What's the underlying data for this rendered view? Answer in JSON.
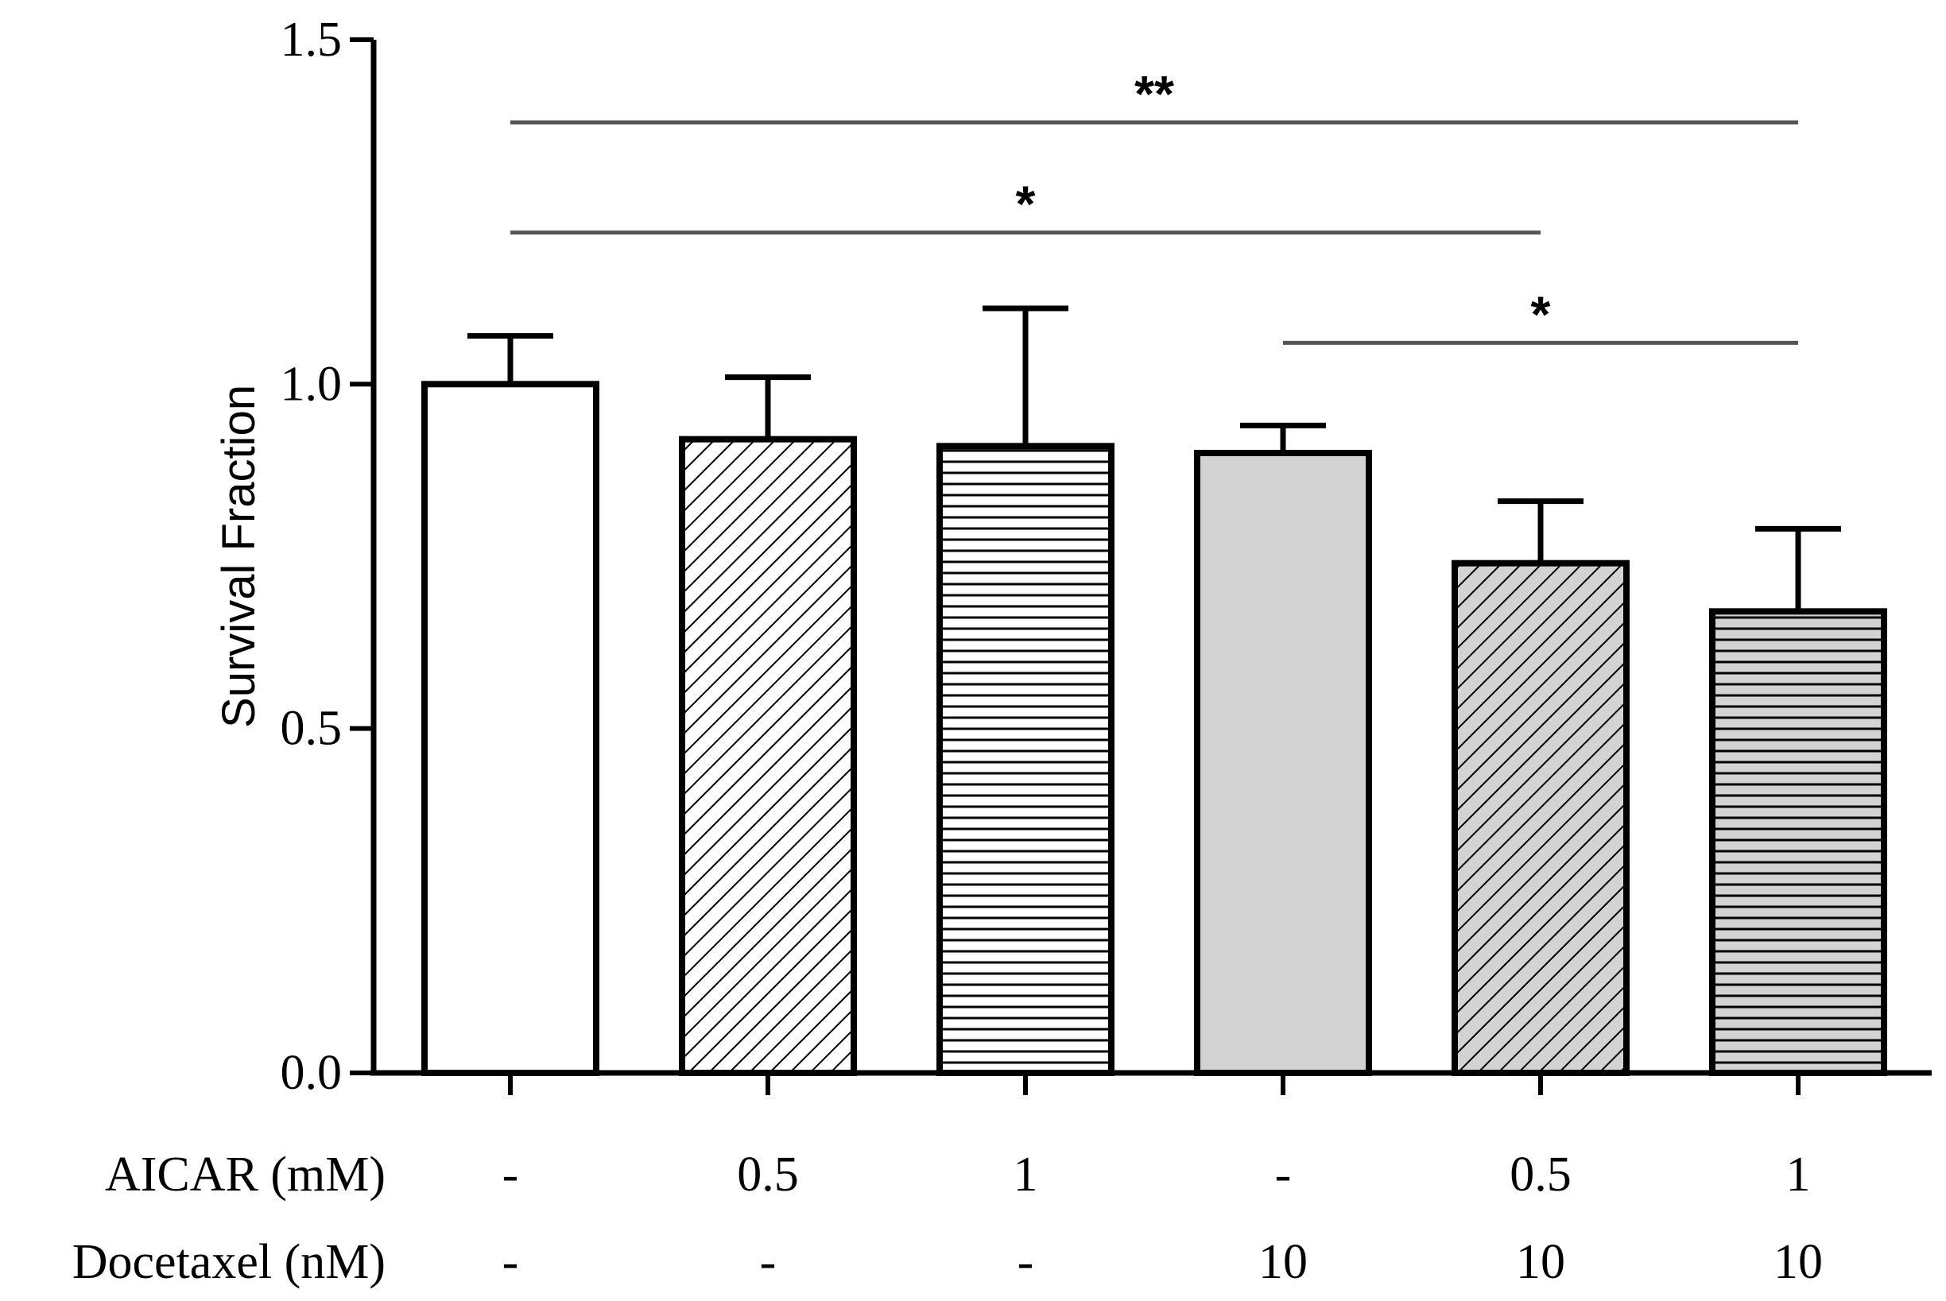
{
  "chart_data": {
    "type": "bar",
    "title": "",
    "xlabel": "",
    "ylabel": "Survival Fraction",
    "ylim": [
      0,
      1.5
    ],
    "yticks": [
      {
        "value": 0.0,
        "label": "0.0"
      },
      {
        "value": 0.5,
        "label": "0.5"
      },
      {
        "value": 1.0,
        "label": "1.0"
      },
      {
        "value": 1.5,
        "label": "1.5"
      }
    ],
    "bars": [
      {
        "aicar": "-",
        "docetaxel": "-",
        "value": 1.0,
        "error": 0.07,
        "fill": "#ffffff",
        "pattern": "none"
      },
      {
        "aicar": "0.5",
        "docetaxel": "-",
        "value": 0.92,
        "error": 0.09,
        "fill": "#ffffff",
        "pattern": "diagonal"
      },
      {
        "aicar": "1",
        "docetaxel": "-",
        "value": 0.91,
        "error": 0.2,
        "fill": "#ffffff",
        "pattern": "horizontal"
      },
      {
        "aicar": "-",
        "docetaxel": "10",
        "value": 0.9,
        "error": 0.04,
        "fill": "#d3d3d3",
        "pattern": "none"
      },
      {
        "aicar": "0.5",
        "docetaxel": "10",
        "value": 0.74,
        "error": 0.09,
        "fill": "#d3d3d3",
        "pattern": "diagonal"
      },
      {
        "aicar": "1",
        "docetaxel": "10",
        "value": 0.67,
        "error": 0.12,
        "fill": "#d3d3d3",
        "pattern": "horizontal"
      }
    ],
    "row_labels": {
      "aicar": "AICAR (mM)",
      "docetaxel": "Docetaxel (nM)"
    },
    "significance": [
      {
        "from": 0,
        "to": 5,
        "y": 1.38,
        "label": "**"
      },
      {
        "from": 0,
        "to": 4,
        "y": 1.22,
        "label": "*"
      },
      {
        "from": 3,
        "to": 5,
        "y": 1.06,
        "label": "*"
      }
    ]
  }
}
